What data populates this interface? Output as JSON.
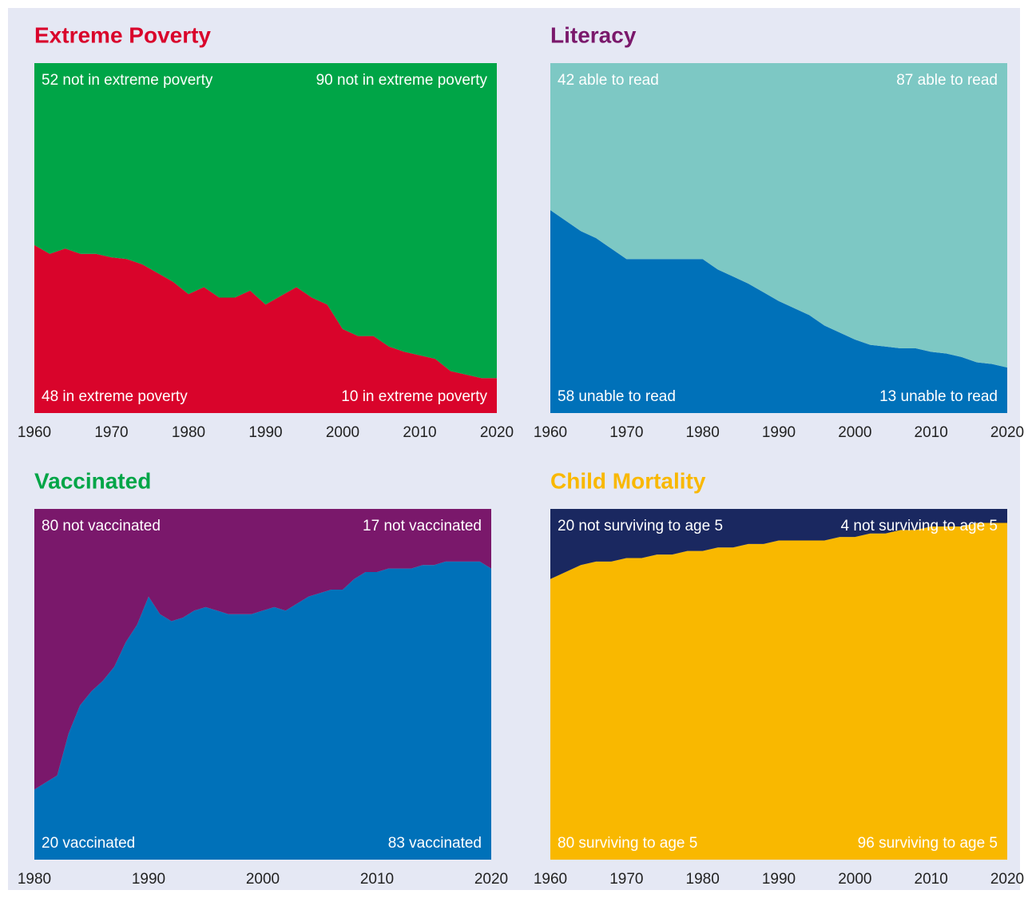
{
  "chart_data": [
    {
      "type": "stacked_area",
      "title": "Extreme Poverty",
      "title_color": "#d9042b",
      "x": [
        1960,
        1962,
        1964,
        1966,
        1968,
        1970,
        1972,
        1974,
        1976,
        1978,
        1980,
        1982,
        1984,
        1986,
        1988,
        1990,
        1992,
        1994,
        1996,
        1998,
        2000,
        2002,
        2004,
        2006,
        2008,
        2010,
        2012,
        2014,
        2016,
        2018,
        2020
      ],
      "series": [
        {
          "color": "#d9042b",
          "values": [
            48,
            45.5,
            47,
            45.5,
            45.5,
            44.5,
            44,
            42.5,
            40,
            37.5,
            34,
            36,
            33,
            33,
            35,
            31,
            33.5,
            36,
            33,
            31,
            24,
            22,
            22,
            19,
            17.5,
            16.5,
            15.5,
            12,
            11,
            10,
            10
          ]
        },
        {
          "color": "#00a547",
          "values": [
            52,
            54.5,
            53,
            54.5,
            54.5,
            55.5,
            56,
            57.5,
            60,
            62.5,
            66,
            64,
            67,
            67,
            65,
            69,
            66.5,
            64,
            67,
            69,
            76,
            78,
            78,
            81,
            82.5,
            83.5,
            84.5,
            88,
            89,
            90,
            90
          ]
        }
      ],
      "annotations": [
        "52 not in extreme poverty",
        "90 not in extreme poverty",
        "48 in extreme poverty",
        "10 in extreme poverty"
      ],
      "xlim": [
        1960,
        2020
      ],
      "xticks": [
        1960,
        1970,
        1980,
        1990,
        2000,
        2010,
        2020
      ],
      "ylim": [
        0,
        100
      ]
    },
    {
      "type": "stacked_area",
      "title": "Literacy",
      "title_color": "#7a186b",
      "x": [
        1960,
        1962,
        1964,
        1966,
        1968,
        1970,
        1972,
        1974,
        1976,
        1978,
        1980,
        1982,
        1984,
        1986,
        1988,
        1990,
        1992,
        1994,
        1996,
        1998,
        2000,
        2002,
        2004,
        2006,
        2008,
        2010,
        2012,
        2014,
        2016,
        2018,
        2020
      ],
      "series": [
        {
          "color": "#0071b9",
          "values": [
            58,
            55,
            52,
            50,
            47,
            44,
            44,
            44,
            44,
            44,
            44,
            41,
            39,
            37,
            34.5,
            32,
            30,
            28,
            25,
            23,
            21,
            19.5,
            19,
            18.5,
            18.5,
            17.5,
            17,
            16,
            14.5,
            14,
            13
          ]
        },
        {
          "color": "#7dc8c4",
          "values": [
            42,
            45,
            48,
            50,
            53,
            56,
            56,
            56,
            56,
            56,
            56,
            59,
            61,
            63,
            65.5,
            68,
            70,
            72,
            75,
            77,
            79,
            80.5,
            81,
            81.5,
            81.5,
            82.5,
            83,
            84,
            85.5,
            86,
            87
          ]
        }
      ],
      "annotations": [
        "42 able to read",
        "87 able to read",
        "58 unable to read",
        "13 unable to read"
      ],
      "xlim": [
        1960,
        2020
      ],
      "xticks": [
        1960,
        1970,
        1980,
        1990,
        2000,
        2010,
        2020
      ],
      "ylim": [
        0,
        100
      ]
    },
    {
      "type": "stacked_area",
      "title": "Vaccinated",
      "title_color": "#00a547",
      "x": [
        1980,
        1981,
        1982,
        1983,
        1984,
        1985,
        1986,
        1987,
        1988,
        1989,
        1990,
        1991,
        1992,
        1993,
        1994,
        1995,
        1996,
        1997,
        1998,
        1999,
        2000,
        2001,
        2002,
        2003,
        2004,
        2005,
        2006,
        2007,
        2008,
        2009,
        2010,
        2011,
        2012,
        2013,
        2014,
        2015,
        2016,
        2017,
        2018,
        2019,
        2020
      ],
      "series": [
        {
          "color": "#0071b9",
          "values": [
            20,
            22,
            24,
            36,
            44,
            48,
            51,
            55,
            62,
            67,
            75,
            70,
            68,
            69,
            71,
            72,
            71,
            70,
            70,
            70,
            71,
            72,
            71,
            73,
            75,
            76,
            77,
            77,
            80,
            82,
            82,
            83,
            83,
            83,
            84,
            84,
            85,
            85,
            85,
            85,
            83
          ]
        },
        {
          "color": "#7a186b",
          "values": [
            80,
            78,
            76,
            64,
            56,
            52,
            49,
            45,
            38,
            33,
            25,
            30,
            32,
            31,
            29,
            28,
            29,
            30,
            30,
            30,
            29,
            28,
            29,
            27,
            25,
            24,
            23,
            23,
            20,
            18,
            18,
            17,
            17,
            17,
            16,
            16,
            15,
            15,
            15,
            15,
            17
          ]
        }
      ],
      "annotations": [
        "80 not vaccinated",
        "17 not vaccinated",
        "20 vaccinated",
        "83 vaccinated"
      ],
      "xlim": [
        1980,
        2020
      ],
      "xticks": [
        1980,
        1990,
        2000,
        2010,
        2020
      ],
      "ylim": [
        0,
        100
      ]
    },
    {
      "type": "stacked_area",
      "title": "Child Mortality",
      "title_color": "#f9b800",
      "x": [
        1960,
        1962,
        1964,
        1966,
        1968,
        1970,
        1972,
        1974,
        1976,
        1978,
        1980,
        1982,
        1984,
        1986,
        1988,
        1990,
        1992,
        1994,
        1996,
        1998,
        2000,
        2002,
        2004,
        2006,
        2008,
        2010,
        2012,
        2014,
        2016,
        2018,
        2020
      ],
      "series": [
        {
          "color": "#f9b800",
          "values": [
            80,
            82,
            84,
            85,
            85,
            86,
            86,
            87,
            87,
            88,
            88,
            89,
            89,
            90,
            90,
            91,
            91,
            91,
            91,
            92,
            92,
            93,
            93,
            94,
            94,
            95,
            95,
            95,
            96,
            96,
            96
          ]
        },
        {
          "color": "#1a2860",
          "values": [
            20,
            18,
            16,
            15,
            15,
            14,
            14,
            13,
            13,
            12,
            12,
            11,
            11,
            10,
            10,
            9,
            9,
            9,
            9,
            8,
            8,
            7,
            7,
            6,
            6,
            5,
            5,
            5,
            4,
            4,
            4
          ]
        }
      ],
      "annotations": [
        "20 not surviving to age 5",
        "4 not surviving to age 5",
        "80 surviving to age 5",
        "96 surviving to age 5"
      ],
      "xlim": [
        1960,
        2020
      ],
      "xticks": [
        1960,
        1970,
        1980,
        1990,
        2000,
        2010,
        2020
      ],
      "ylim": [
        0,
        100
      ]
    }
  ]
}
